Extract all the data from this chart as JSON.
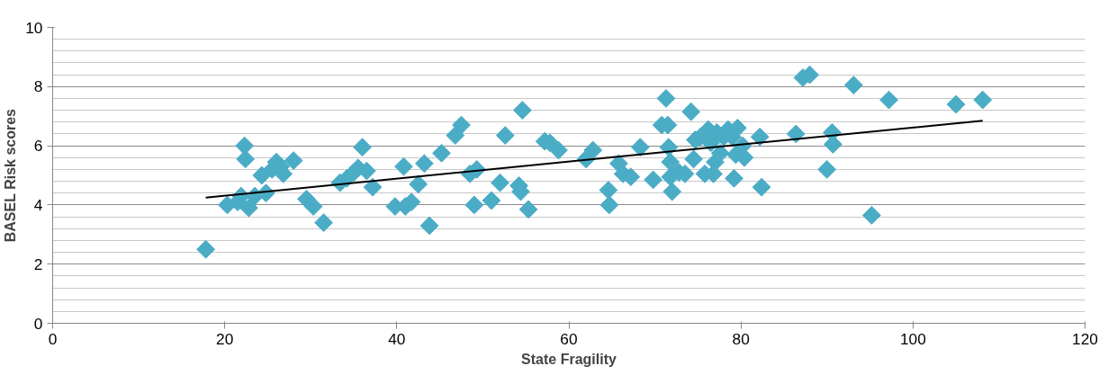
{
  "chart_data": {
    "type": "scatter",
    "xlabel": "State Fragility",
    "ylabel": "BASEL Risk scores",
    "xlim": [
      0,
      120
    ],
    "xticks": [
      0,
      20,
      40,
      60,
      80,
      100,
      120
    ],
    "ylim": [
      0,
      10
    ],
    "yticks": [
      0,
      2,
      4,
      6,
      8,
      10
    ],
    "grid": "y",
    "series": [
      {
        "marker": "diamond",
        "color": "#4bacc6",
        "x": [
          17.8,
          20.3,
          21.5,
          21.9,
          22.3,
          22.4,
          22.8,
          23.5,
          24.3,
          24.8,
          25.5,
          26.0,
          26.5,
          26.8,
          28.0,
          29.5,
          30.3,
          31.5,
          33.4,
          34.2,
          35.0,
          35.5,
          36.0,
          36.5,
          37.2,
          39.8,
          40.8,
          41.0,
          41.7,
          42.5,
          43.2,
          43.8,
          45.2,
          46.8,
          47.5,
          48.5,
          49.0,
          49.3,
          51.0,
          52.0,
          52.6,
          54.2,
          54.4,
          54.6,
          55.3,
          57.2,
          57.8,
          58.8,
          62.0,
          62.8,
          64.6,
          64.7,
          65.8,
          66.3,
          67.2,
          68.3,
          69.8,
          70.8,
          71.3,
          71.5,
          71.6,
          71.8,
          71.8,
          72.0,
          72.8,
          73.5,
          74.2,
          74.5,
          74.7,
          75.3,
          75.8,
          76.2,
          76.5,
          76.8,
          77.0,
          77.2,
          77.6,
          78.0,
          78.5,
          79.0,
          79.2,
          79.4,
          79.6,
          80.2,
          80.4,
          82.2,
          82.4,
          86.4,
          87.2,
          88.0,
          90.0,
          90.6,
          90.7,
          93.1,
          95.2,
          97.2,
          105.0,
          108.1
        ],
        "values": [
          2.5,
          4.0,
          4.1,
          4.3,
          6.0,
          5.55,
          3.9,
          4.3,
          5.0,
          4.4,
          5.2,
          5.45,
          5.3,
          5.05,
          5.5,
          4.2,
          3.95,
          3.4,
          4.75,
          4.9,
          5.1,
          5.25,
          5.95,
          5.15,
          4.6,
          3.95,
          5.3,
          3.95,
          4.1,
          4.7,
          5.4,
          3.3,
          5.75,
          6.35,
          6.7,
          5.05,
          4.0,
          5.2,
          4.15,
          4.75,
          6.35,
          4.65,
          4.45,
          7.2,
          3.85,
          6.15,
          6.1,
          5.85,
          5.55,
          5.85,
          4.5,
          4.0,
          5.4,
          5.05,
          4.95,
          5.95,
          4.85,
          6.7,
          7.6,
          6.7,
          5.95,
          5.45,
          4.95,
          4.45,
          5.1,
          5.05,
          7.15,
          5.55,
          6.2,
          6.3,
          5.05,
          6.55,
          6.1,
          5.05,
          5.45,
          6.45,
          5.75,
          6.3,
          6.55,
          6.3,
          4.9,
          5.7,
          6.6,
          6.0,
          5.6,
          6.3,
          4.6,
          6.4,
          8.3,
          8.4,
          5.2,
          6.45,
          6.05,
          8.05,
          3.65,
          7.55,
          7.4,
          7.55
        ]
      },
      {
        "type": "line",
        "color": "#000000",
        "x": [
          17.8,
          108.1
        ],
        "values": [
          4.25,
          6.85
        ]
      }
    ]
  }
}
